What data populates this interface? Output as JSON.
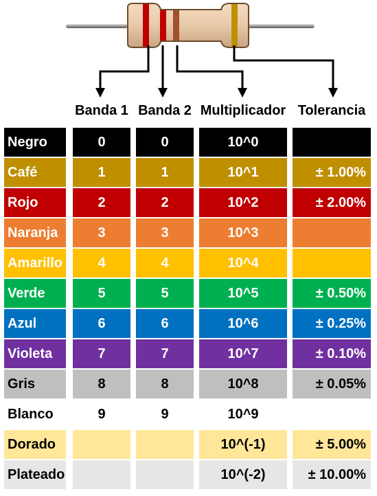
{
  "headers": [
    "Banda 1",
    "Banda 2",
    "Multiplicador",
    "Tolerancia"
  ],
  "rows": [
    {
      "name": "Negro",
      "band1": "0",
      "band2": "0",
      "multiplier": "10^0",
      "tolerance": "",
      "color": "#000000",
      "text_color": "#ffffff",
      "tolerance_cell": true
    },
    {
      "name": "Café",
      "band1": "1",
      "band2": "1",
      "multiplier": "10^1",
      "tolerance": "± 1.00%",
      "color": "#bf8f00",
      "text_color": "#ffffff",
      "tolerance_cell": true
    },
    {
      "name": "Rojo",
      "band1": "2",
      "band2": "2",
      "multiplier": "10^2",
      "tolerance": "± 2.00%",
      "color": "#c00000",
      "text_color": "#ffffff",
      "tolerance_cell": true
    },
    {
      "name": "Naranja",
      "band1": "3",
      "band2": "3",
      "multiplier": "10^3",
      "tolerance": "",
      "color": "#ed7d31",
      "text_color": "#ffffff",
      "tolerance_cell": true
    },
    {
      "name": "Amarillo",
      "band1": "4",
      "band2": "4",
      "multiplier": "10^4",
      "tolerance": "",
      "color": "#ffc000",
      "text_color": "#ffffff",
      "tolerance_cell": true
    },
    {
      "name": "Verde",
      "band1": "5",
      "band2": "5",
      "multiplier": "10^5",
      "tolerance": "± 0.50%",
      "color": "#00b050",
      "text_color": "#ffffff",
      "tolerance_cell": true
    },
    {
      "name": "Azul",
      "band1": "6",
      "band2": "6",
      "multiplier": "10^6",
      "tolerance": "± 0.25%",
      "color": "#0070c0",
      "text_color": "#ffffff",
      "tolerance_cell": true
    },
    {
      "name": "Violeta",
      "band1": "7",
      "band2": "7",
      "multiplier": "10^7",
      "tolerance": "± 0.10%",
      "color": "#7030a0",
      "text_color": "#ffffff",
      "tolerance_cell": true
    },
    {
      "name": "Gris",
      "band1": "8",
      "band2": "8",
      "multiplier": "10^8",
      "tolerance": "± 0.05%",
      "color": "#bfbfbf",
      "text_color": "#000000",
      "tolerance_cell": true
    },
    {
      "name": "Blanco",
      "band1": "9",
      "band2": "9",
      "multiplier": "10^9",
      "tolerance": "",
      "color": "#ffffff",
      "text_color": "#000000",
      "tolerance_cell": false
    },
    {
      "name": "Dorado",
      "band1": "",
      "band2": "",
      "multiplier": "10^(-1)",
      "tolerance": "± 5.00%",
      "color": "#ffe699",
      "text_color": "#000000",
      "tolerance_cell": true
    },
    {
      "name": "Plateado",
      "band1": "",
      "band2": "",
      "multiplier": "10^(-2)",
      "tolerance": "± 10.00%",
      "color": "#e7e6e6",
      "text_color": "#000000",
      "tolerance_cell": true
    }
  ],
  "resistor": {
    "body_color": "#e8c9a8",
    "band_colors": [
      "#c00000",
      "#c00000",
      "#a0522d",
      "#bf8f00"
    ]
  }
}
